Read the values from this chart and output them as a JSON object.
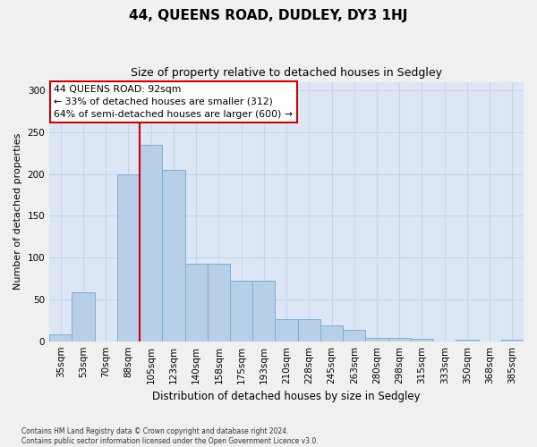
{
  "title": "44, QUEENS ROAD, DUDLEY, DY3 1HJ",
  "subtitle": "Size of property relative to detached houses in Sedgley",
  "xlabel": "Distribution of detached houses by size in Sedgley",
  "ylabel": "Number of detached properties",
  "categories": [
    "35sqm",
    "53sqm",
    "70sqm",
    "88sqm",
    "105sqm",
    "123sqm",
    "140sqm",
    "158sqm",
    "175sqm",
    "193sqm",
    "210sqm",
    "228sqm",
    "245sqm",
    "263sqm",
    "280sqm",
    "298sqm",
    "315sqm",
    "333sqm",
    "350sqm",
    "368sqm",
    "385sqm"
  ],
  "values": [
    8,
    59,
    0,
    200,
    235,
    205,
    93,
    93,
    72,
    72,
    26,
    26,
    19,
    14,
    4,
    4,
    3,
    0,
    2,
    0,
    2
  ],
  "bar_color": "#b8cfe8",
  "bar_edge_color": "#7aafd4",
  "annotation_text_line1": "44 QUEENS ROAD: 92sqm",
  "annotation_text_line2": "← 33% of detached houses are smaller (312)",
  "annotation_text_line3": "64% of semi-detached houses are larger (600) →",
  "annotation_box_facecolor": "#ffffff",
  "annotation_box_edgecolor": "#cc0000",
  "vline_color": "#cc0000",
  "vline_x": 3.5,
  "ylim": [
    0,
    310
  ],
  "yticks": [
    0,
    50,
    100,
    150,
    200,
    250,
    300
  ],
  "grid_color": "#c8d4e8",
  "plot_bg_color": "#dce6f5",
  "fig_bg_color": "#f0f0f0",
  "title_fontsize": 11,
  "subtitle_fontsize": 9,
  "ylabel_fontsize": 8,
  "xlabel_fontsize": 8.5,
  "tick_fontsize": 7.5,
  "footer_line1": "Contains HM Land Registry data © Crown copyright and database right 2024.",
  "footer_line2": "Contains public sector information licensed under the Open Government Licence v3.0."
}
